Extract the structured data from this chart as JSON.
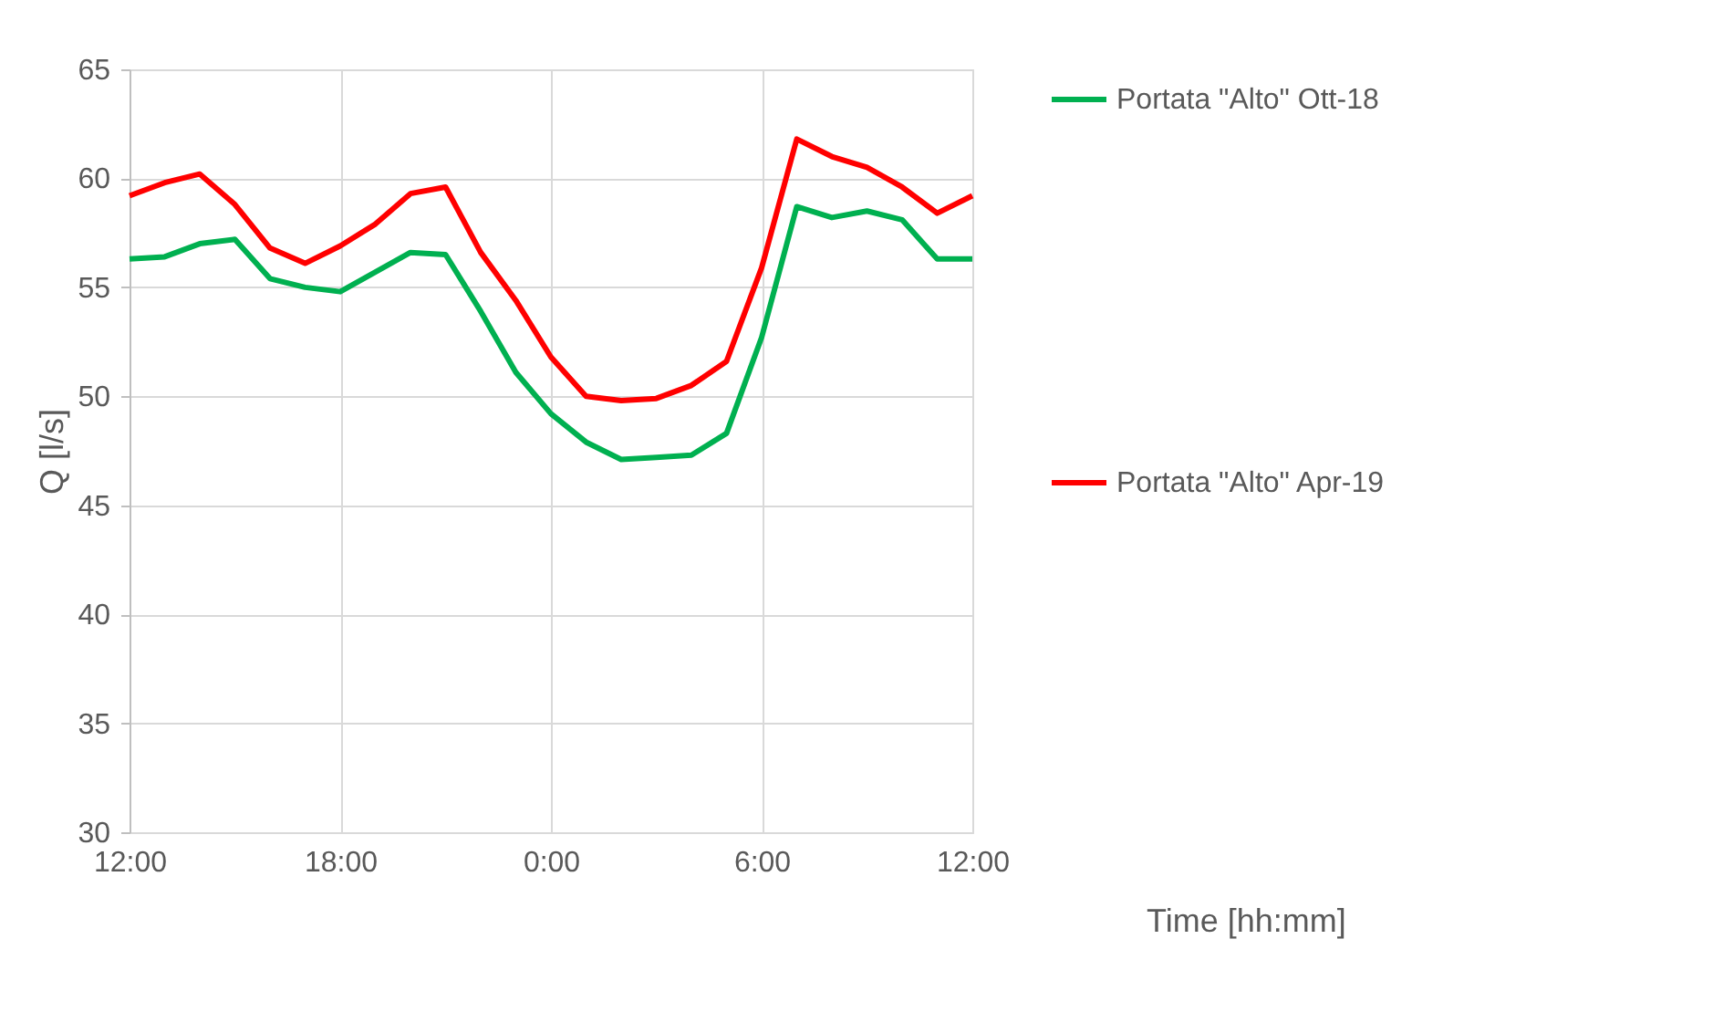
{
  "chart_data": {
    "type": "line",
    "xlabel": "Time [hh:mm]",
    "ylabel": "Q [l/s]",
    "x": [
      "2000-01-01T12:00",
      "2000-01-01T13:00",
      "2000-01-01T14:00",
      "2000-01-01T15:00",
      "2000-01-01T16:00",
      "2000-01-01T17:00",
      "2000-01-01T18:00",
      "2000-01-01T19:00",
      "2000-01-01T20:00",
      "2000-01-01T21:00",
      "2000-01-01T22:00",
      "2000-01-01T23:00",
      "2000-01-02T00:00",
      "2000-01-02T01:00",
      "2000-01-02T02:00",
      "2000-01-02T03:00",
      "2000-01-02T04:00",
      "2000-01-02T05:00",
      "2000-01-02T06:00",
      "2000-01-02T07:00",
      "2000-01-02T08:00",
      "2000-01-02T09:00",
      "2000-01-02T10:00",
      "2000-01-02T11:00",
      "2000-01-02T12:00"
    ],
    "series": [
      {
        "name": "Portata \"Alto\" Ott-18",
        "color": "#00b050",
        "values": [
          56.3,
          56.4,
          57.0,
          57.2,
          55.4,
          55.0,
          54.8,
          55.7,
          56.6,
          56.5,
          53.9,
          51.1,
          49.2,
          47.9,
          47.1,
          47.2,
          47.3,
          48.3,
          52.7,
          58.7,
          58.2,
          58.5,
          58.1,
          56.3,
          56.3
        ]
      },
      {
        "name": "Portata \"Alto\" Apr-19",
        "color": "#ff0000",
        "values": [
          59.2,
          59.8,
          60.2,
          58.8,
          56.8,
          56.1,
          56.9,
          57.9,
          59.3,
          59.6,
          56.6,
          54.4,
          51.8,
          50.0,
          49.8,
          49.9,
          50.5,
          51.6,
          55.9,
          61.8,
          61.0,
          60.5,
          59.6,
          58.4,
          59.2
        ]
      }
    ],
    "xlim": [
      "2000-01-01T12:00",
      "2000-01-02T12:00"
    ],
    "xticks": [
      {
        "value": "2000-01-01T12:00",
        "label": "12:00"
      },
      {
        "value": "2000-01-01T18:00",
        "label": "18:00"
      },
      {
        "value": "2000-01-02T00:00",
        "label": "0:00"
      },
      {
        "value": "2000-01-02T06:00",
        "label": "6:00"
      },
      {
        "value": "2000-01-02T12:00",
        "label": "12:00"
      }
    ],
    "ylim": [
      30,
      65
    ],
    "yticks": [
      30,
      35,
      40,
      45,
      50,
      55,
      60,
      65
    ],
    "grid": true,
    "legend": "right",
    "marker": "none",
    "line_style": "solid"
  }
}
